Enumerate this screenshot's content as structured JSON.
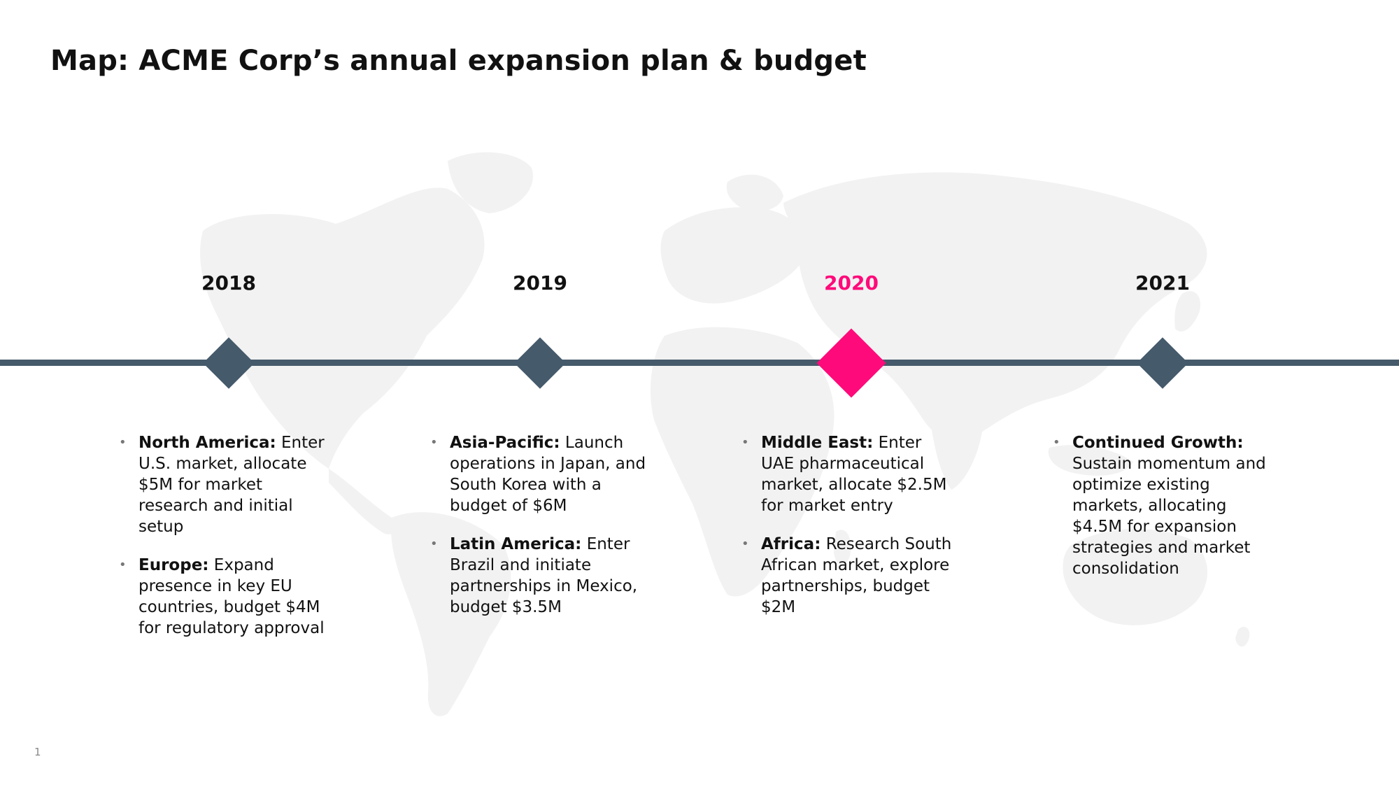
{
  "title": "Map: ACME Corp’s annual expansion plan & budget",
  "page_number": "1",
  "accent_color": "#ff0a7a",
  "timeline_color": "#455a6b",
  "timeline": [
    {
      "year": "2018",
      "active": false,
      "items": [
        {
          "heading": "North America:",
          "text": " Enter U.S. market, allocate $5M for market research and initial setup"
        },
        {
          "heading": "Europe:",
          "text": " Expand presence in key EU countries, budget $4M for regulatory approval"
        }
      ]
    },
    {
      "year": "2019",
      "active": false,
      "items": [
        {
          "heading": "Asia-Pacific:",
          "text": " Launch operations in Japan, and South Korea with a budget of $6M"
        },
        {
          "heading": "Latin America:",
          "text": " Enter Brazil and initiate partnerships in Mexico, budget $3.5M"
        }
      ]
    },
    {
      "year": "2020",
      "active": true,
      "items": [
        {
          "heading": "Middle East:",
          "text": " Enter UAE pharmaceutical market, allocate $2.5M for market entry"
        },
        {
          "heading": "Africa:",
          "text": " Research South African market, explore partnerships, budget $2M"
        }
      ]
    },
    {
      "year": "2021",
      "active": false,
      "items": [
        {
          "heading": "Continued Growth:",
          "text": " Sustain momentum and optimize existing markets, allocating $4.5M for expansion strategies and market consolidation"
        }
      ]
    }
  ]
}
